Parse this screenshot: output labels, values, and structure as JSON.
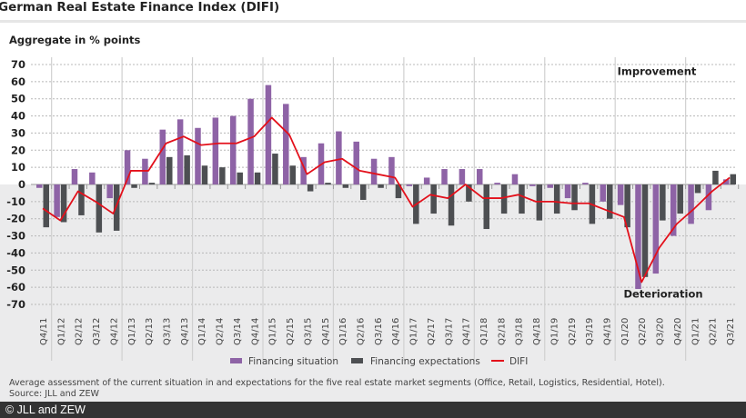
{
  "header": {
    "title": "German Real Estate Finance Index (DIFI)",
    "subtitle": "Aggregate in % points"
  },
  "footer": {
    "note": "Average assessment of the current situation in and expectations for the five real estate market segments (Office, Retail, Logistics, Residential, Hotel).",
    "source": "Source: JLL and ZEW",
    "copyright": "© JLL and ZEW"
  },
  "colors": {
    "financing_situation": "#8e63a6",
    "financing_expectations": "#4d4f52",
    "difi": "#e3101b",
    "upper_bg": "#ffffff",
    "lower_bg": "#ebebec"
  },
  "chart_data": {
    "type": "bar",
    "title": "German Real Estate Finance Index (DIFI)",
    "ylabel": "Aggregate in % points",
    "xlabel": "",
    "ylim": [
      -70,
      70
    ],
    "yticks": [
      70,
      60,
      50,
      40,
      30,
      20,
      10,
      0,
      -10,
      -20,
      -30,
      -40,
      -50,
      -60,
      -70
    ],
    "grid": true,
    "legend": "bottom-center",
    "annotations": [
      {
        "text": "Improvement",
        "position": "top-right"
      },
      {
        "text": "Deterioration",
        "position": "bottom-right"
      }
    ],
    "categories": [
      "Q4/11",
      "Q1/12",
      "Q2/12",
      "Q3/12",
      "Q4/12",
      "Q1/13",
      "Q2/13",
      "Q3/13",
      "Q4/13",
      "Q1/14",
      "Q2/14",
      "Q3/14",
      "Q4/14",
      "Q1/15",
      "Q2/15",
      "Q3/15",
      "Q4/15",
      "Q1/16",
      "Q2/16",
      "Q3/16",
      "Q4/16",
      "Q1/17",
      "Q2/17",
      "Q3/17",
      "Q4/17",
      "Q1/18",
      "Q2/18",
      "Q3/18",
      "Q4/18",
      "Q1/19",
      "Q2/19",
      "Q3/19",
      "Q4/19",
      "Q1/20",
      "Q2/20",
      "Q3/20",
      "Q4/20",
      "Q1/21",
      "Q2/21",
      "Q3/21"
    ],
    "series": [
      {
        "name": "Financing situation",
        "kind": "bar",
        "values": [
          -2,
          -19,
          9,
          7,
          -8,
          20,
          15,
          32,
          38,
          33,
          39,
          40,
          50,
          58,
          47,
          16,
          24,
          31,
          25,
          15,
          16,
          -1,
          4,
          9,
          9,
          9,
          1,
          6,
          -1,
          -2,
          -8,
          1,
          -10,
          -12,
          -61,
          -52,
          -30,
          -23,
          -15,
          3
        ]
      },
      {
        "name": "Financing expectations",
        "kind": "bar",
        "values": [
          -25,
          -22,
          -18,
          -28,
          -27,
          -2,
          1,
          16,
          17,
          11,
          10,
          7,
          7,
          18,
          11,
          -4,
          1,
          -2,
          -9,
          -2,
          -8,
          -23,
          -17,
          -24,
          -10,
          -26,
          -17,
          -17,
          -21,
          -17,
          -15,
          -23,
          -20,
          -25,
          -54,
          -21,
          -17,
          -5,
          8,
          6
        ]
      },
      {
        "name": "DIFI",
        "kind": "line",
        "values": [
          -14,
          -21,
          -4,
          -10,
          -17,
          8,
          8,
          24,
          28,
          23,
          24,
          24,
          28,
          39,
          29,
          6,
          13,
          15,
          8,
          6,
          4,
          -13,
          -6,
          -8,
          0,
          -8,
          -8,
          -6,
          -10,
          -10,
          -11,
          -11,
          -15,
          -19,
          -57,
          -37,
          -23,
          -14,
          -4,
          4
        ]
      }
    ]
  }
}
